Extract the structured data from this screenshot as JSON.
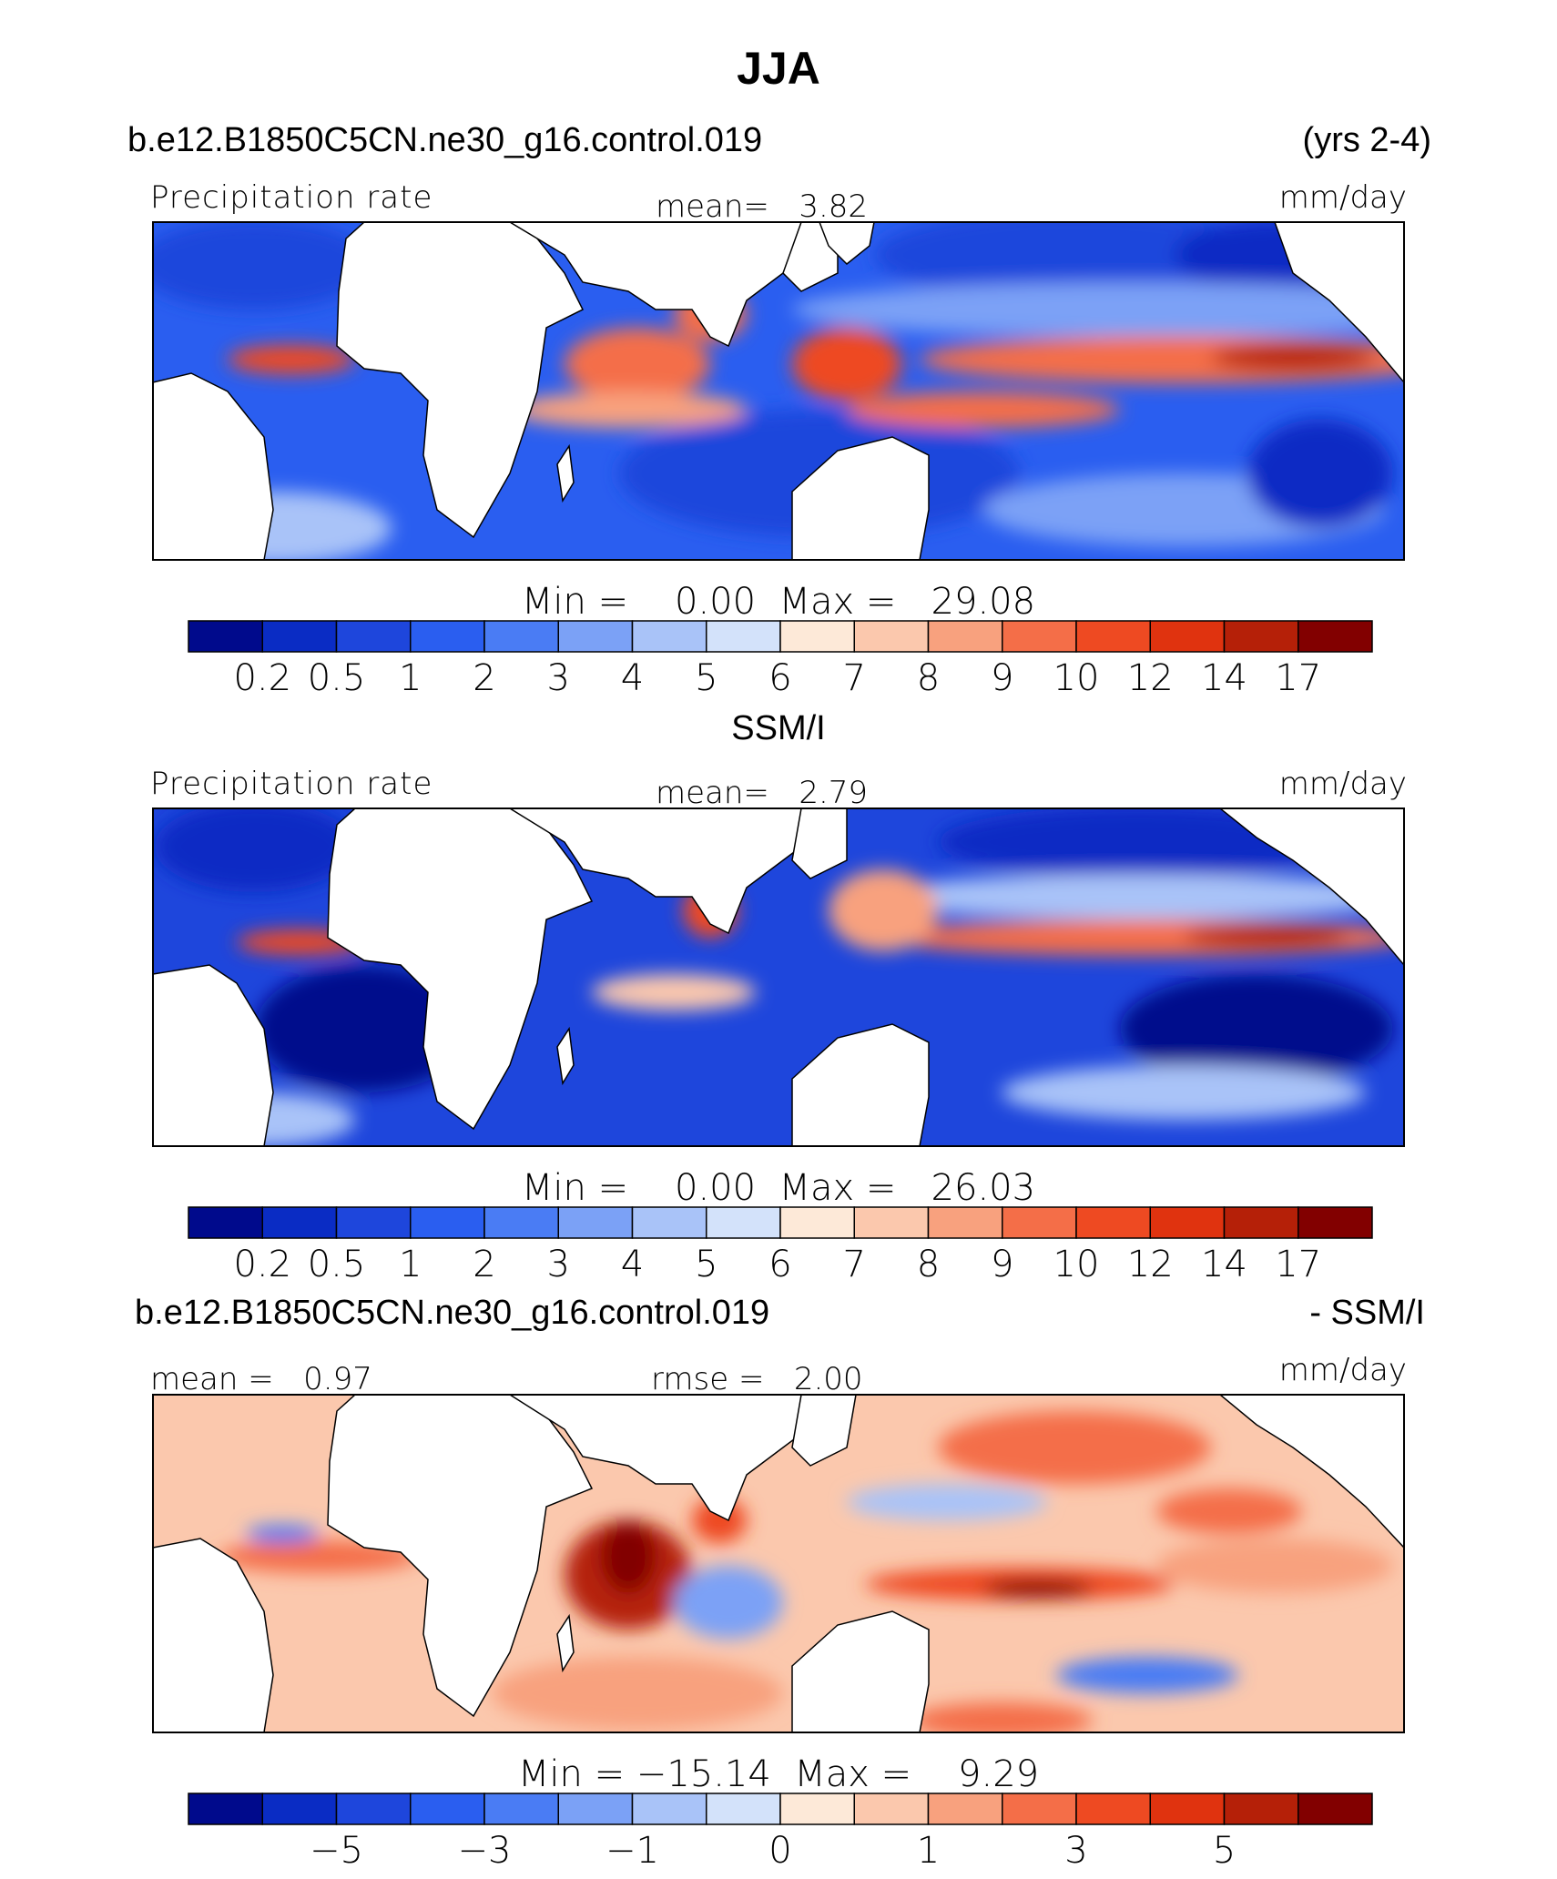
{
  "figure": {
    "title": "JJA",
    "case_name": "b.e12.B1850C5CN.ne30_g16.control.019",
    "years": "(yrs 2-4)"
  },
  "colors": {
    "abs_scale": [
      "#000a8c",
      "#0a2cc4",
      "#1e46dc",
      "#2a5ef0",
      "#4a7cf4",
      "#7ba1f6",
      "#a9c3f8",
      "#d3e2fa",
      "#fde9d8",
      "#fbc8ad",
      "#f8a17e",
      "#f46e48",
      "#ee4a22",
      "#e0330f",
      "#b52008",
      "#820000"
    ],
    "diff_scale": [
      "#000a8c",
      "#0a2cc4",
      "#1e46dc",
      "#2a5ef0",
      "#4a7cf4",
      "#7ba1f6",
      "#a9c3f8",
      "#d3e2fa",
      "#fde9d8",
      "#fbc8ad",
      "#f8a17e",
      "#f46e48",
      "#ee4a22",
      "#e0330f",
      "#b52008",
      "#820000"
    ]
  },
  "panels": [
    {
      "name": "model",
      "header": "",
      "field": "Precipitation rate",
      "stat1": "mean=   3.82",
      "stat2": "",
      "units": "mm/day",
      "minmax": "Min =    0.00  Max =   29.08",
      "scale": "abs",
      "colorbar_labels": [
        "0.2",
        "0.5",
        "1",
        "2",
        "3",
        "4",
        "5",
        "6",
        "7",
        "8",
        "9",
        "10",
        "12",
        "14",
        "17"
      ]
    },
    {
      "name": "obs",
      "header": "SSM/I",
      "field": "Precipitation rate",
      "stat1": "mean=   2.79",
      "stat2": "",
      "units": "mm/day",
      "minmax": "Min =    0.00  Max =   26.03",
      "scale": "abs",
      "colorbar_labels": [
        "0.2",
        "0.5",
        "1",
        "2",
        "3",
        "4",
        "5",
        "6",
        "7",
        "8",
        "9",
        "10",
        "12",
        "14",
        "17"
      ]
    },
    {
      "name": "diff",
      "header_left": "b.e12.B1850C5CN.ne30_g16.control.019",
      "header_right": "- SSM/I",
      "field": "",
      "stat1": "mean =   0.97",
      "stat2": "rmse =   2.00",
      "units": "mm/day",
      "minmax": "Min = −15.14  Max =    9.29",
      "scale": "diff",
      "colorbar_labels": [
        "−5",
        "−3",
        "−1",
        "0",
        "1",
        "3",
        "5"
      ],
      "colorbar_label_positions": [
        2,
        4,
        6,
        8,
        10,
        12,
        14
      ]
    }
  ],
  "chart_data": {
    "type": "heatmap",
    "season": "JJA",
    "variable": "Precipitation rate",
    "units": "mm/day",
    "x_range_lon": [
      -60,
      300
    ],
    "y_range_lat": [
      -40,
      40
    ],
    "maps": [
      {
        "name": "b.e12.B1850C5CN.ne30_g16.control.019",
        "mean": 3.82,
        "min": 0.0,
        "max": 29.08,
        "levels": [
          0.2,
          0.5,
          1,
          2,
          3,
          4,
          5,
          6,
          7,
          8,
          9,
          10,
          12,
          14,
          17
        ]
      },
      {
        "name": "SSM/I",
        "mean": 2.79,
        "min": 0.0,
        "max": 26.03,
        "levels": [
          0.2,
          0.5,
          1,
          2,
          3,
          4,
          5,
          6,
          7,
          8,
          9,
          10,
          12,
          14,
          17
        ]
      },
      {
        "name": "- SSM/I",
        "mean": 0.97,
        "rmse": 2.0,
        "min": -15.14,
        "max": 9.29,
        "levels": [
          -5,
          -3,
          -1,
          0,
          1,
          3,
          5
        ]
      }
    ]
  }
}
